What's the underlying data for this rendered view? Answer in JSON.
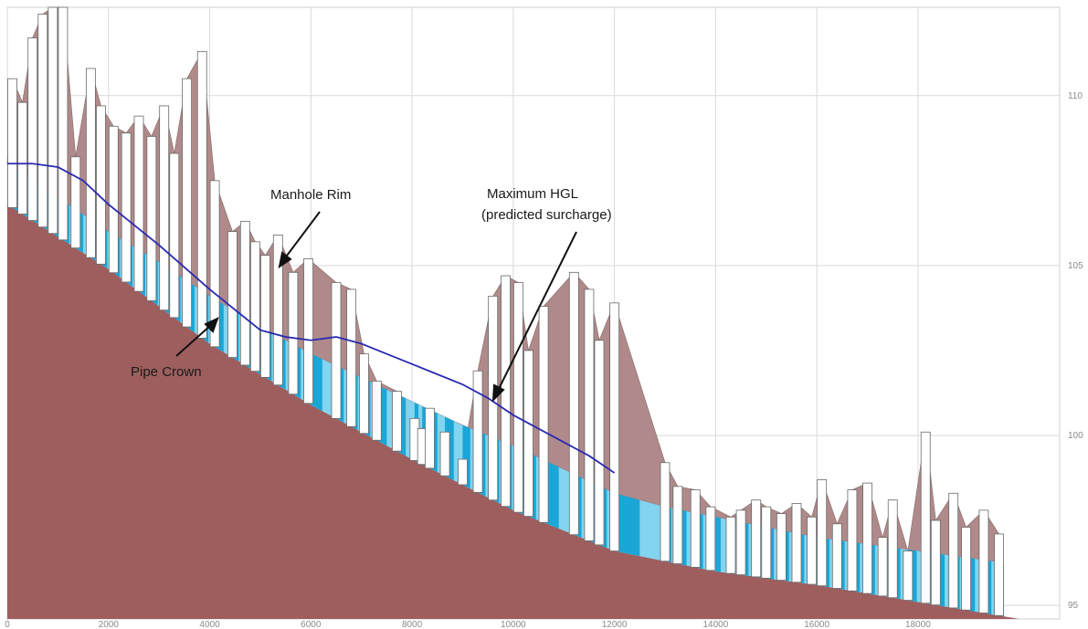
{
  "chart_data": {
    "type": "area",
    "title": "",
    "xlabel": "",
    "ylabel": "",
    "xlim": [
      0,
      20800
    ],
    "ylim": [
      94.6,
      112.6
    ],
    "grid": true,
    "x_ticks": [
      0,
      2000,
      4000,
      6000,
      8000,
      10000,
      12000,
      14000,
      16000,
      18000
    ],
    "x_tick_labels": [
      "0",
      "2000",
      "4000",
      "6000",
      "8000",
      "10000",
      "12000",
      "14000",
      "16000",
      "18000"
    ],
    "y_ticks": [
      95,
      100,
      105,
      110
    ],
    "y_tick_labels": [
      "95",
      "100",
      "105",
      "110"
    ],
    "annotations": {
      "rim": "Manhole Rim",
      "hgl_line1": "Maximum  HGL",
      "hgl_line2": "(predicted surcharge)",
      "crown": "Pipe Crown"
    },
    "colors": {
      "ground": "#9e5e5e",
      "cover": "#b08a8a",
      "pipe": "#1aa6d6",
      "pipe_light": "#82d4ef",
      "hgl": "#2a2ab0",
      "manhole": "#ffffff",
      "arrow": "#111111"
    },
    "invert": {
      "x": [
        0,
        2000,
        4000,
        6000,
        8000,
        10000,
        12000,
        14000,
        16000,
        18000,
        20000
      ],
      "y": [
        106.8,
        104.9,
        102.7,
        100.9,
        99.3,
        97.8,
        96.6,
        96.0,
        95.6,
        95.1,
        94.6
      ]
    },
    "crown": {
      "x": [
        0,
        500,
        1000,
        1500,
        2000,
        3000,
        4000,
        5000,
        6000,
        7000,
        8000,
        9000,
        10000,
        11000,
        12000,
        13000,
        14000,
        15000,
        16000,
        17000,
        18000,
        19000,
        19900
      ],
      "y": [
        108.0,
        107.5,
        107.0,
        106.5,
        106.0,
        105.1,
        104.1,
        103.2,
        102.4,
        101.7,
        101.0,
        100.3,
        99.7,
        99.0,
        98.3,
        97.9,
        97.6,
        97.3,
        97.0,
        96.8,
        96.6,
        96.4,
        96.2
      ]
    },
    "hgl": {
      "x": [
        0,
        500,
        1000,
        1500,
        2000,
        3000,
        4000,
        5000,
        5500,
        6000,
        6500,
        7000,
        7500,
        8000,
        8500,
        9000,
        9500,
        10000,
        10500,
        11000,
        11500,
        12000
      ],
      "y": [
        108.0,
        108.0,
        107.9,
        107.5,
        106.8,
        105.6,
        104.3,
        103.1,
        102.9,
        102.8,
        102.9,
        102.7,
        102.4,
        102.1,
        101.8,
        101.5,
        101.1,
        100.6,
        100.2,
        99.8,
        99.4,
        98.9
      ]
    },
    "manholes": {
      "x": [
        100,
        300,
        500,
        700,
        900,
        1100,
        1350,
        1650,
        1850,
        2100,
        2350,
        2600,
        2850,
        3100,
        3300,
        3550,
        3850,
        4100,
        4450,
        4700,
        4900,
        5100,
        5350,
        5650,
        5950,
        6500,
        6800,
        7050,
        7300,
        7700,
        8050,
        8200,
        8350,
        8650,
        9000,
        9300,
        9600,
        9850,
        10100,
        10300,
        10600,
        11200,
        11500,
        11700,
        12000,
        13000,
        13250,
        13600,
        13900,
        14300,
        14500,
        14800,
        15000,
        15300,
        15600,
        15900,
        16100,
        16400,
        16700,
        17000,
        17300,
        17500,
        17800,
        18150,
        18350,
        18700,
        18950,
        19300,
        19600
      ],
      "rim": [
        110.5,
        109.8,
        111.7,
        112.4,
        112.6,
        112.6,
        108.2,
        110.8,
        109.7,
        109.1,
        108.9,
        109.4,
        108.8,
        109.7,
        108.3,
        110.5,
        111.3,
        107.5,
        106.0,
        106.3,
        105.7,
        105.3,
        105.9,
        104.8,
        105.2,
        104.5,
        104.3,
        102.4,
        101.6,
        101.3,
        100.5,
        100.2,
        100.8,
        100.1,
        99.3,
        101.9,
        104.1,
        104.7,
        104.5,
        102.5,
        103.8,
        104.8,
        104.3,
        102.8,
        103.9,
        99.2,
        98.5,
        98.4,
        97.9,
        97.6,
        97.8,
        98.1,
        97.9,
        97.7,
        98.0,
        97.6,
        98.7,
        97.4,
        98.4,
        98.6,
        97.0,
        98.1,
        96.6,
        100.1,
        97.5,
        98.3,
        97.3,
        97.8,
        97.1
      ]
    }
  }
}
